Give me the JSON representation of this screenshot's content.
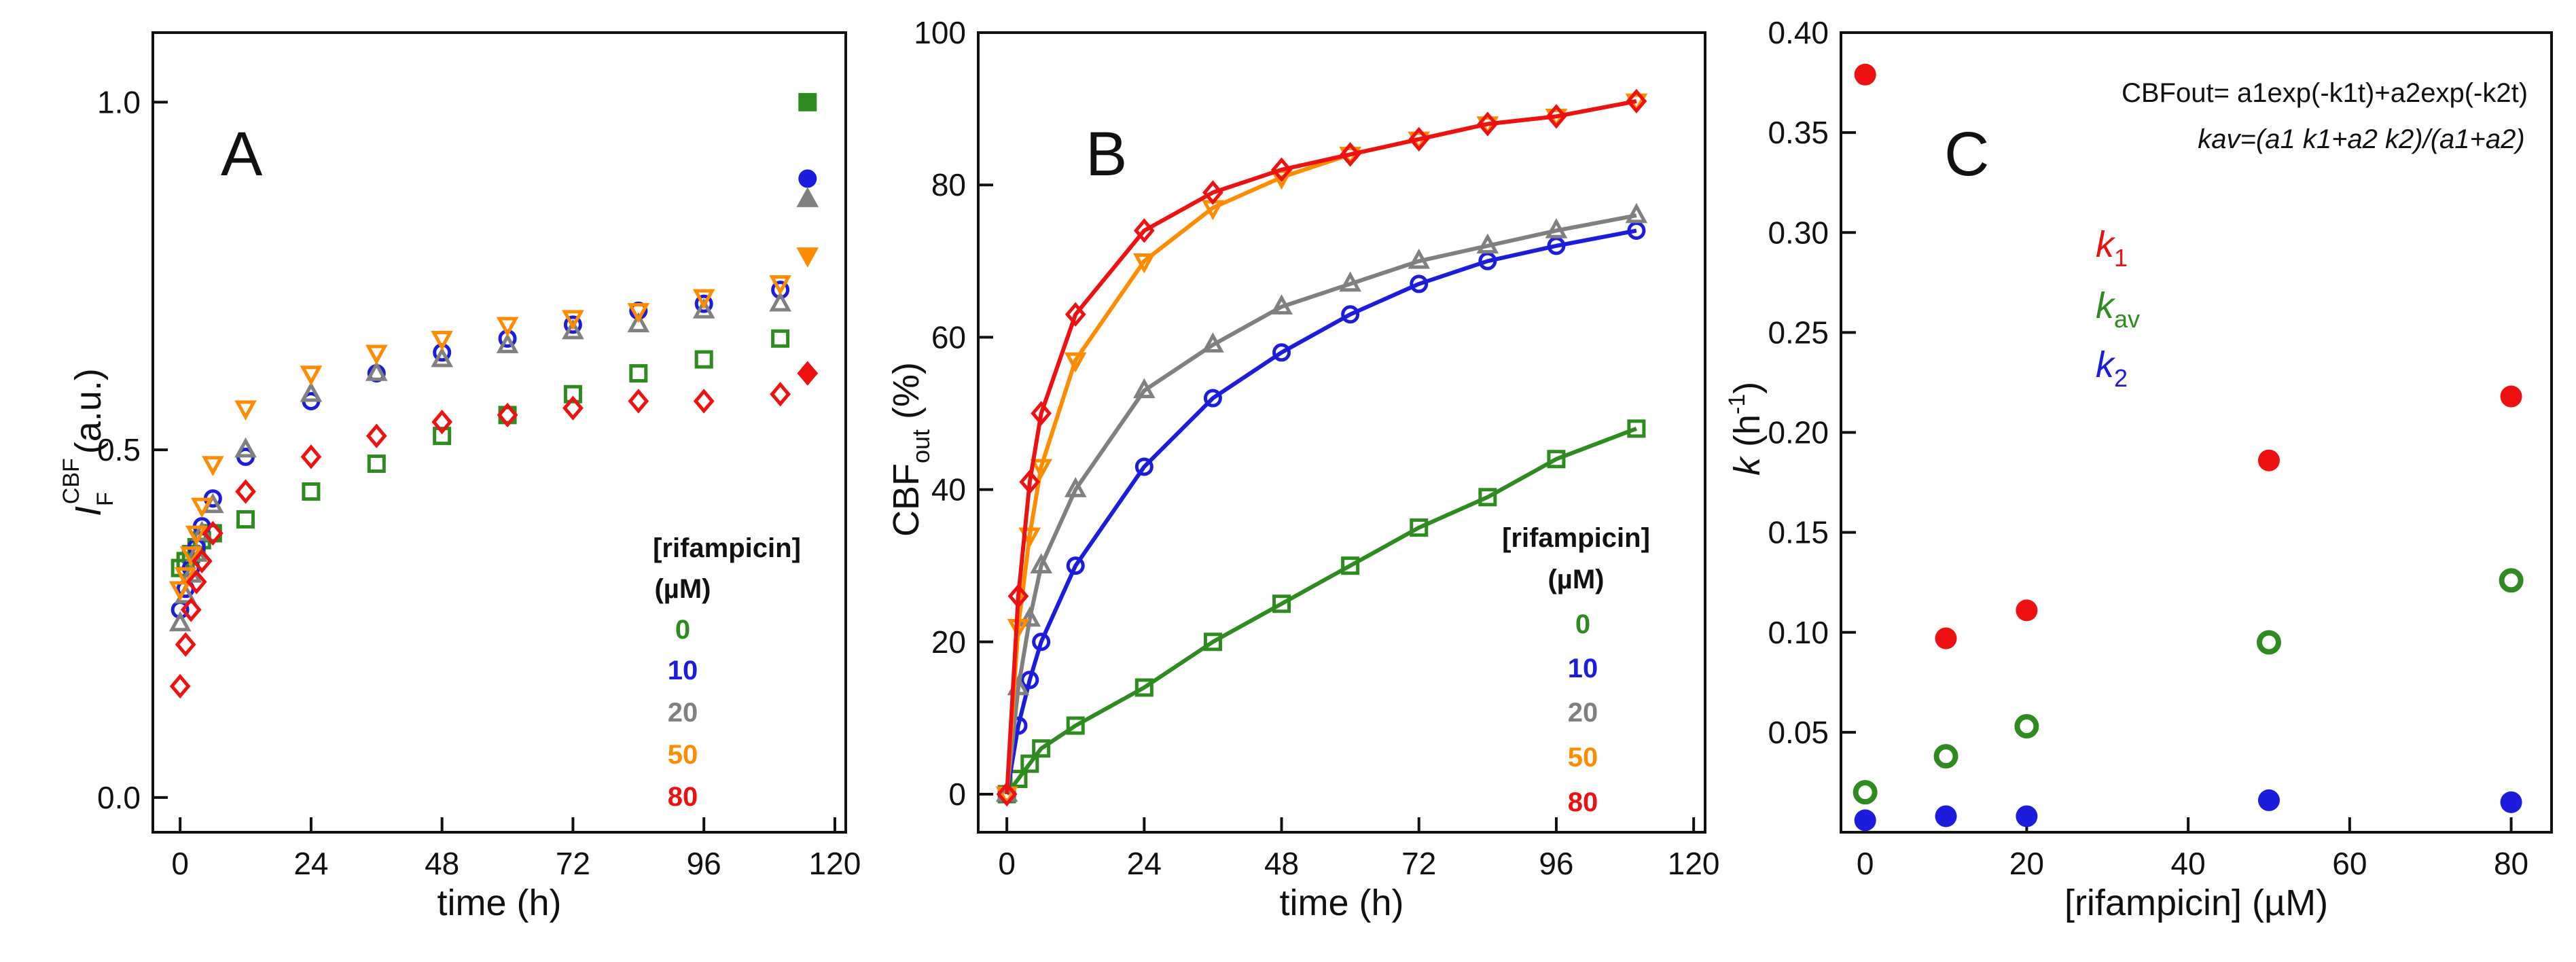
{
  "colors": {
    "r0": "#2e8b20",
    "r10": "#1c1cdc",
    "r20": "#808080",
    "r50": "#ff8c00",
    "r80": "#ee1111",
    "axis": "#111111"
  },
  "panels": {
    "A": {
      "letter": "A",
      "xlabel": "time (h)",
      "ylabel_I": "I",
      "ylabel_sub": "F",
      "ylabel_sup": "CBF",
      "ylabel_rest": "(a.u.)",
      "xticks": [
        "0",
        "24",
        "48",
        "72",
        "96",
        "120"
      ],
      "yticks": [
        "0.0",
        "0.5",
        "1.0"
      ],
      "legend_title": "[rifampicin]",
      "legend_unit": "(µM)",
      "legend": [
        "0",
        "10",
        "20",
        "50",
        "80"
      ]
    },
    "B": {
      "letter": "B",
      "xlabel": "time (h)",
      "ylabel_main": "CBF",
      "ylabel_sub": "out",
      "ylabel_rest": " (%)",
      "xticks": [
        "0",
        "24",
        "48",
        "72",
        "96",
        "120"
      ],
      "yticks": [
        "0",
        "20",
        "40",
        "60",
        "80",
        "100"
      ],
      "legend_title": "[rifampicin]",
      "legend_unit": "(µM)",
      "legend": [
        "0",
        "10",
        "20",
        "50",
        "80"
      ]
    },
    "C": {
      "letter": "C",
      "xlabel": "[rifampicin] (µM)",
      "ylabel_k": "k",
      "ylabel_rest": " (h",
      "ylabel_sup": "-1",
      "ylabel_close": ")",
      "xticks": [
        "0",
        "20",
        "40",
        "60",
        "80"
      ],
      "yticks": [
        "0.05",
        "0.10",
        "0.15",
        "0.20",
        "0.25",
        "0.30",
        "0.35",
        "0.40"
      ],
      "formula1": "CBFout= a1exp(-k1t)+a2exp(-k2t)",
      "formula2": "kav=(a1 k1+a2 k2)/(a1+a2)",
      "legend": [
        {
          "k": "k",
          "sub": "1",
          "color": "#ee1111"
        },
        {
          "k": "k",
          "sub": "av",
          "color": "#2e8b20"
        },
        {
          "k": "k",
          "sub": "2",
          "color": "#1c1cdc"
        }
      ]
    }
  },
  "chart_data": [
    {
      "id": "A",
      "type": "scatter",
      "xlabel": "time (h)",
      "ylabel": "I_F^CBF (a.u.)",
      "xlim": [
        -5,
        122
      ],
      "ylim": [
        -0.05,
        1.1
      ],
      "series": [
        {
          "name": "0",
          "key": "r0",
          "marker": "square",
          "x": [
            0,
            1,
            2,
            3,
            4,
            6,
            12,
            24,
            36,
            48,
            60,
            72,
            84,
            96,
            110
          ],
          "y": [
            0.33,
            0.34,
            0.35,
            0.36,
            0.37,
            0.38,
            0.4,
            0.44,
            0.48,
            0.52,
            0.55,
            0.58,
            0.61,
            0.63,
            0.66
          ],
          "end": {
            "x": 115,
            "y": 1.0
          }
        },
        {
          "name": "10",
          "key": "r10",
          "marker": "circle",
          "x": [
            0,
            1,
            2,
            3,
            4,
            6,
            12,
            24,
            36,
            48,
            60,
            72,
            84,
            96,
            110
          ],
          "y": [
            0.27,
            0.3,
            0.33,
            0.36,
            0.39,
            0.43,
            0.49,
            0.57,
            0.61,
            0.64,
            0.66,
            0.68,
            0.7,
            0.71,
            0.73
          ],
          "end": {
            "x": 115,
            "y": 0.89
          }
        },
        {
          "name": "20",
          "key": "r20",
          "marker": "triangle-up",
          "x": [
            0,
            1,
            2,
            3,
            4,
            6,
            12,
            24,
            36,
            48,
            60,
            72,
            84,
            96,
            110
          ],
          "y": [
            0.25,
            0.29,
            0.32,
            0.35,
            0.38,
            0.42,
            0.5,
            0.58,
            0.61,
            0.63,
            0.65,
            0.67,
            0.68,
            0.7,
            0.71
          ],
          "end": {
            "x": 115,
            "y": 0.86
          }
        },
        {
          "name": "50",
          "key": "r50",
          "marker": "triangle-down",
          "x": [
            0,
            1,
            2,
            3,
            4,
            6,
            12,
            24,
            36,
            48,
            60,
            72,
            84,
            96,
            110
          ],
          "y": [
            0.3,
            0.32,
            0.35,
            0.38,
            0.42,
            0.48,
            0.56,
            0.61,
            0.64,
            0.66,
            0.68,
            0.69,
            0.7,
            0.72,
            0.74
          ],
          "end": {
            "x": 115,
            "y": 0.78
          }
        },
        {
          "name": "80",
          "key": "r80",
          "marker": "diamond",
          "x": [
            0,
            1,
            2,
            3,
            4,
            6,
            12,
            24,
            36,
            48,
            60,
            72,
            84,
            96,
            110
          ],
          "y": [
            0.16,
            0.22,
            0.27,
            0.31,
            0.34,
            0.38,
            0.44,
            0.49,
            0.52,
            0.54,
            0.55,
            0.56,
            0.57,
            0.57,
            0.58
          ],
          "end": {
            "x": 115,
            "y": 0.61
          }
        }
      ]
    },
    {
      "id": "B",
      "type": "line",
      "xlabel": "time (h)",
      "ylabel": "CBF_out (%)",
      "xlim": [
        -5,
        122
      ],
      "ylim": [
        -5,
        100
      ],
      "series": [
        {
          "name": "0",
          "key": "r0",
          "marker": "square",
          "x": [
            0,
            2,
            4,
            6,
            12,
            24,
            36,
            48,
            60,
            72,
            84,
            96,
            110
          ],
          "y": [
            0,
            2,
            4,
            6,
            9,
            14,
            20,
            25,
            30,
            35,
            39,
            44,
            48
          ]
        },
        {
          "name": "10",
          "key": "r10",
          "marker": "circle",
          "x": [
            0,
            2,
            4,
            6,
            12,
            24,
            36,
            48,
            60,
            72,
            84,
            96,
            110
          ],
          "y": [
            0,
            9,
            15,
            20,
            30,
            43,
            52,
            58,
            63,
            67,
            70,
            72,
            74
          ]
        },
        {
          "name": "20",
          "key": "r20",
          "marker": "triangle-up",
          "x": [
            0,
            2,
            4,
            6,
            12,
            24,
            36,
            48,
            60,
            72,
            84,
            96,
            110
          ],
          "y": [
            0,
            14,
            23,
            30,
            40,
            53,
            59,
            64,
            67,
            70,
            72,
            74,
            76
          ]
        },
        {
          "name": "50",
          "key": "r50",
          "marker": "triangle-down",
          "x": [
            0,
            2,
            4,
            6,
            12,
            24,
            36,
            48,
            60,
            72,
            84,
            96,
            110
          ],
          "y": [
            0,
            22,
            34,
            43,
            57,
            70,
            77,
            81,
            84,
            86,
            88,
            89,
            91
          ]
        },
        {
          "name": "80",
          "key": "r80",
          "marker": "diamond",
          "x": [
            0,
            2,
            4,
            6,
            12,
            24,
            36,
            48,
            60,
            72,
            84,
            96,
            110
          ],
          "y": [
            0,
            26,
            41,
            50,
            63,
            74,
            79,
            82,
            84,
            86,
            88,
            89,
            91
          ]
        }
      ]
    },
    {
      "id": "C",
      "type": "scatter",
      "xlabel": "[rifampicin] (µM)",
      "ylabel": "k (h-1)",
      "xlim": [
        -3,
        85
      ],
      "ylim": [
        0.0,
        0.4
      ],
      "x": [
        0,
        10,
        20,
        50,
        80
      ],
      "series": [
        {
          "name": "k1",
          "key": "r80",
          "filled": true,
          "values": [
            0.379,
            0.097,
            0.111,
            0.186,
            0.218
          ]
        },
        {
          "name": "kav",
          "key": "r0",
          "filled": false,
          "values": [
            0.02,
            0.038,
            0.053,
            0.095,
            0.126
          ]
        },
        {
          "name": "k2",
          "key": "r10",
          "filled": true,
          "values": [
            0.006,
            0.008,
            0.008,
            0.016,
            0.015
          ]
        }
      ]
    }
  ]
}
